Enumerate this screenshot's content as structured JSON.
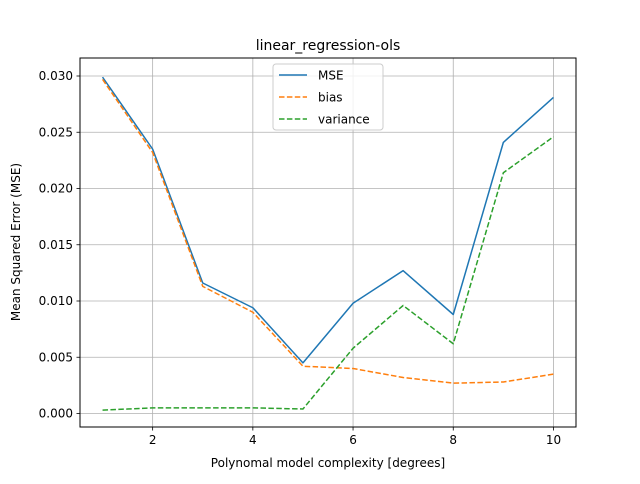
{
  "chart_data": {
    "type": "line",
    "title": "linear_regression-ols",
    "xlabel": "Polynomal model complexity [degrees]",
    "ylabel": "Mean Squared Error (MSE)",
    "x": [
      1,
      2,
      3,
      4,
      5,
      6,
      7,
      8,
      9,
      10
    ],
    "xlim": [
      0.55,
      10.45
    ],
    "ylim": [
      -0.0012,
      0.0316
    ],
    "xticks": [
      2,
      4,
      6,
      8,
      10
    ],
    "xtick_labels": [
      "2",
      "4",
      "6",
      "8",
      "10"
    ],
    "yticks": [
      0.0,
      0.005,
      0.01,
      0.015,
      0.02,
      0.025,
      0.03
    ],
    "ytick_labels": [
      "0.000",
      "0.005",
      "0.010",
      "0.015",
      "0.020",
      "0.025",
      "0.030"
    ],
    "grid": true,
    "legend_position": "upper center",
    "series": [
      {
        "name": "MSE",
        "color": "#1f77b4",
        "style": "solid",
        "values": [
          0.0299,
          0.0235,
          0.0116,
          0.0094,
          0.0045,
          0.0098,
          0.0127,
          0.0088,
          0.0241,
          0.0281
        ]
      },
      {
        "name": "bias",
        "color": "#ff7f0e",
        "style": "dashed",
        "values": [
          0.0297,
          0.0232,
          0.0113,
          0.009,
          0.0042,
          0.004,
          0.0032,
          0.0027,
          0.0028,
          0.0035
        ]
      },
      {
        "name": "variance",
        "color": "#2ca02c",
        "style": "dashed",
        "values": [
          0.0003,
          0.0005,
          0.0005,
          0.0005,
          0.0004,
          0.0058,
          0.0096,
          0.0062,
          0.0214,
          0.0246
        ]
      }
    ]
  }
}
